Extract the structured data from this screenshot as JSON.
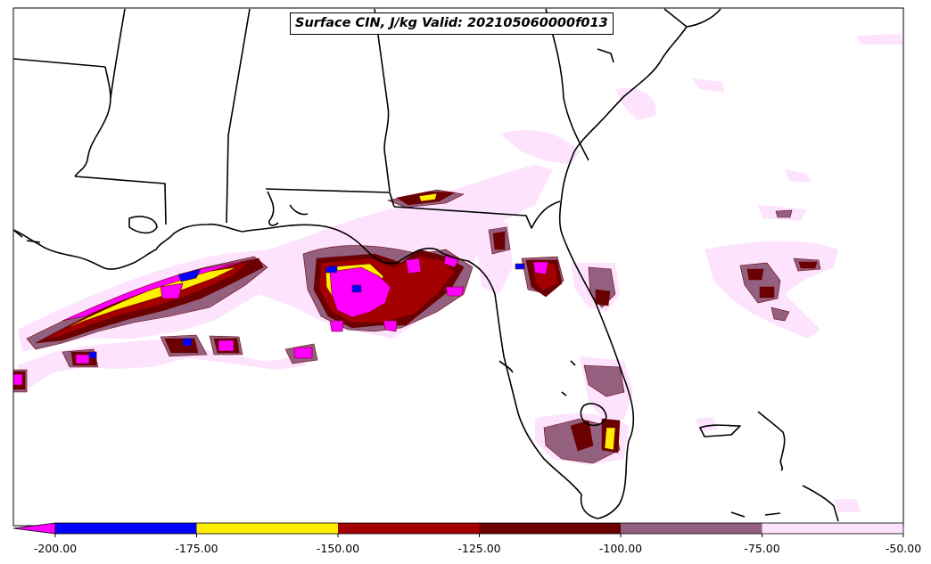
{
  "title": "Surface CIN, J/kg Valid: 202105060000f013",
  "colorbar": {
    "ticks": [
      "-200.00",
      "-175.00",
      "-150.00",
      "-125.00",
      "-100.00",
      "-75.00",
      "-50.00"
    ],
    "levels": [
      {
        "from": -200,
        "to": -175,
        "color": "#0000ff"
      },
      {
        "from": -175,
        "to": -150,
        "color": "#ffee00"
      },
      {
        "from": -150,
        "to": -125,
        "color": "#a50000"
      },
      {
        "from": -125,
        "to": -100,
        "color": "#6b0000"
      },
      {
        "from": -100,
        "to": -75,
        "color": "#946080"
      },
      {
        "from": -75,
        "to": -50,
        "color": "#fde3fd"
      }
    ],
    "under_color": "#ff00ff"
  },
  "colors": {
    "light": "#fde3fd",
    "mauve": "#946080",
    "dark_red": "#6b0000",
    "red": "#a50000",
    "yellow": "#ffee00",
    "blue": "#0000ff",
    "magenta": "#ff00ff",
    "coast": "#000000"
  }
}
